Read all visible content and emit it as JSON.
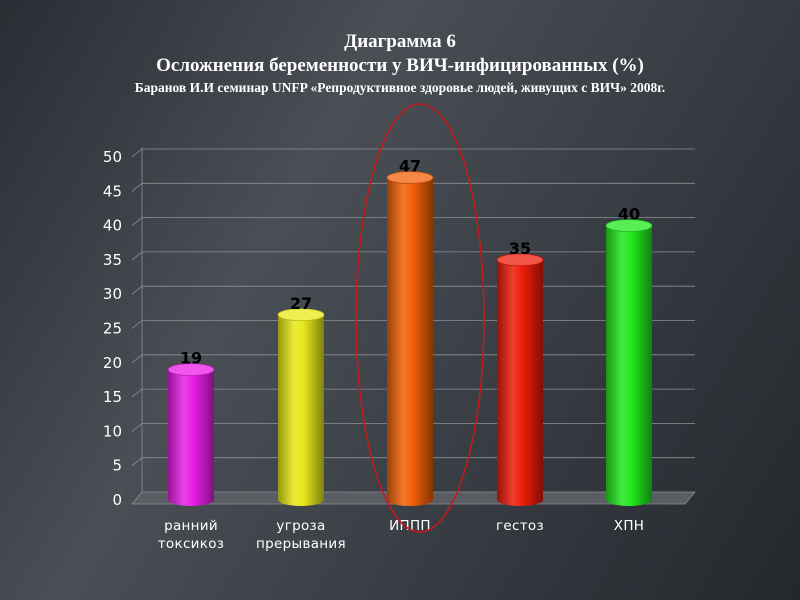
{
  "chart_data": {
    "type": "bar",
    "title": "Диаграмма 6",
    "subtitle": "Осложнения беременности у ВИЧ-инфицированных (%)",
    "source": "Баранов И.И семинар UNFP «Репродуктивное здоровье людей, живущих с ВИЧ» 2008г.",
    "categories": [
      [
        "ранний",
        "токсикоз"
      ],
      [
        "угроза",
        "прерывания"
      ],
      [
        "ИППП"
      ],
      [
        "гестоз"
      ],
      [
        "ХПН"
      ]
    ],
    "values": [
      19,
      27,
      47,
      35,
      40
    ],
    "ylim": [
      0,
      50
    ],
    "yticks": [
      0,
      5,
      10,
      15,
      20,
      25,
      30,
      35,
      40,
      45,
      50
    ],
    "grid": true,
    "highlighted_category": "ИППП"
  },
  "colors": {
    "bars": [
      "#e81ee6",
      "#e8e81a",
      "#f26008",
      "#ee1c0a",
      "#22e81e"
    ],
    "highlight_ellipse": "#c41a1a"
  }
}
